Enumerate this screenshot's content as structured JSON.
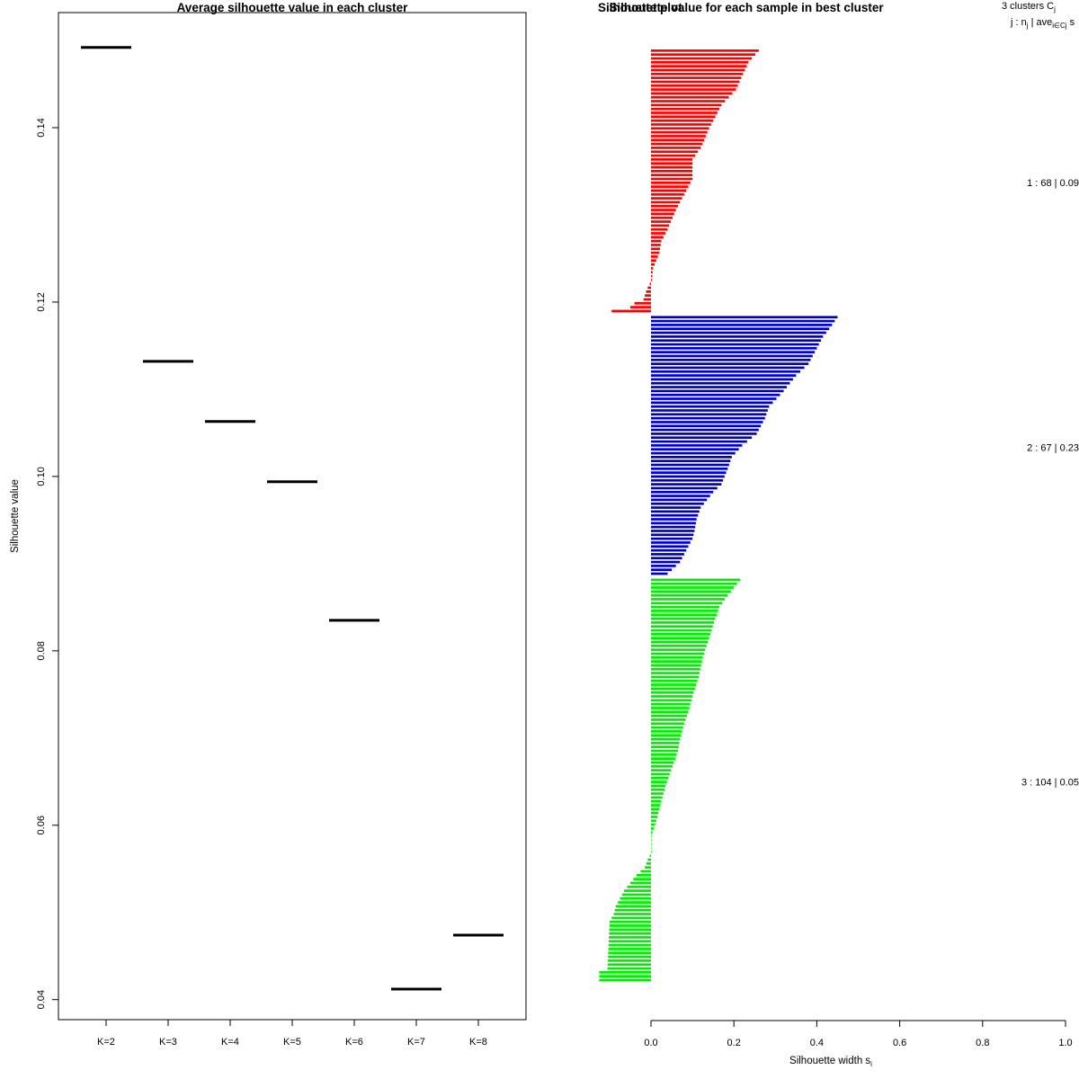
{
  "chart_data": [
    {
      "type": "line",
      "subtype": "segment-per-category",
      "title": "Average silhouette value in each cluster",
      "xlabel": "",
      "ylabel": "Silhouette value",
      "categories": [
        "K=2",
        "K=3",
        "K=4",
        "K=5",
        "K=6",
        "K=7",
        "K=8"
      ],
      "values": [
        0.1492,
        0.1132,
        0.1063,
        0.0994,
        0.0835,
        0.0412,
        0.0474
      ],
      "ylim": [
        0.0377,
        0.1532
      ],
      "yticks": [
        "0.04",
        "0.06",
        "0.08",
        "0.10",
        "0.12",
        "0.14"
      ],
      "ytick_values": [
        0.04,
        0.06,
        0.08,
        0.1,
        0.12,
        0.14
      ],
      "grid": false
    },
    {
      "type": "bar",
      "orientation": "horizontal",
      "title": "Silhouette value for each sample in best cluster",
      "title_overlap": "Silhouette plot",
      "xlabel": "Silhouette width s",
      "xlabel_subscript": "i",
      "xlim": [
        0.0,
        1.0
      ],
      "xticks": [
        "0.0",
        "0.2",
        "0.4",
        "0.6",
        "0.8",
        "1.0"
      ],
      "xtick_values": [
        0.0,
        0.2,
        0.4,
        0.6,
        0.8,
        1.0
      ],
      "header": {
        "line1": "3  clusters  C",
        "line1_sub": "j",
        "line2": "j :  n",
        "line2_sub": "j",
        "line2_mid": " | ave",
        "line2_mid_sub": "i∈Cj",
        "line2_end": "  s"
      },
      "series": [
        {
          "name": "1",
          "color": "#ff0000",
          "n": 68,
          "label": "1 :   68  |  0.09",
          "profile": [
            [
              0,
              0.26
            ],
            [
              3,
              0.235
            ],
            [
              10,
              0.205
            ],
            [
              14,
              0.17
            ],
            [
              20,
              0.14
            ],
            [
              25,
              0.12
            ],
            [
              28,
              0.1
            ],
            [
              33,
              0.1
            ],
            [
              37,
              0.08
            ],
            [
              41,
              0.06
            ],
            [
              46,
              0.04
            ],
            [
              49,
              0.025
            ],
            [
              52,
              0.02
            ],
            [
              56,
              0.005
            ],
            [
              59,
              0.002
            ],
            [
              60,
              -0.003
            ],
            [
              61,
              -0.008
            ],
            [
              62,
              -0.012
            ],
            [
              63,
              -0.015
            ],
            [
              64,
              -0.018
            ],
            [
              65,
              -0.04
            ],
            [
              66,
              -0.05
            ],
            [
              67,
              -0.095
            ]
          ]
        },
        {
          "name": "2",
          "color": "#0000cc",
          "n": 67,
          "label": "2 :   67  |  0.23",
          "profile": [
            [
              0,
              0.45
            ],
            [
              3,
              0.43
            ],
            [
              5,
              0.415
            ],
            [
              8,
              0.4
            ],
            [
              12,
              0.38
            ],
            [
              15,
              0.35
            ],
            [
              19,
              0.32
            ],
            [
              23,
              0.285
            ],
            [
              26,
              0.275
            ],
            [
              30,
              0.255
            ],
            [
              33,
              0.22
            ],
            [
              36,
              0.195
            ],
            [
              39,
              0.185
            ],
            [
              43,
              0.17
            ],
            [
              45,
              0.15
            ],
            [
              49,
              0.12
            ],
            [
              52,
              0.11
            ],
            [
              55,
              0.105
            ],
            [
              57,
              0.1
            ],
            [
              60,
              0.085
            ],
            [
              63,
              0.07
            ],
            [
              64,
              0.06
            ],
            [
              65,
              0.05
            ],
            [
              66,
              0.04
            ]
          ]
        },
        {
          "name": "3",
          "color": "#00ee00",
          "n": 104,
          "label": "3 :   104  |  0.05",
          "profile": [
            [
              0,
              0.215
            ],
            [
              2,
              0.2
            ],
            [
              4,
              0.185
            ],
            [
              7,
              0.165
            ],
            [
              10,
              0.155
            ],
            [
              15,
              0.14
            ],
            [
              20,
              0.125
            ],
            [
              25,
              0.115
            ],
            [
              30,
              0.1
            ],
            [
              34,
              0.09
            ],
            [
              37,
              0.08
            ],
            [
              41,
              0.07
            ],
            [
              44,
              0.065
            ],
            [
              47,
              0.055
            ],
            [
              50,
              0.045
            ],
            [
              53,
              0.035
            ],
            [
              55,
              0.03
            ],
            [
              57,
              0.025
            ],
            [
              59,
              0.02
            ],
            [
              61,
              0.015
            ],
            [
              63,
              0.01
            ],
            [
              65,
              0.003
            ],
            [
              66,
              0.0
            ],
            [
              70,
              0.0
            ],
            [
              71,
              -0.003
            ],
            [
              72,
              -0.008
            ],
            [
              74,
              -0.015
            ],
            [
              76,
              -0.035
            ],
            [
              78,
              -0.05
            ],
            [
              80,
              -0.065
            ],
            [
              82,
              -0.075
            ],
            [
              84,
              -0.085
            ],
            [
              86,
              -0.09
            ],
            [
              88,
              -0.1
            ],
            [
              100,
              -0.105
            ],
            [
              101,
              -0.125
            ],
            [
              103,
              -0.125
            ]
          ]
        }
      ]
    }
  ]
}
